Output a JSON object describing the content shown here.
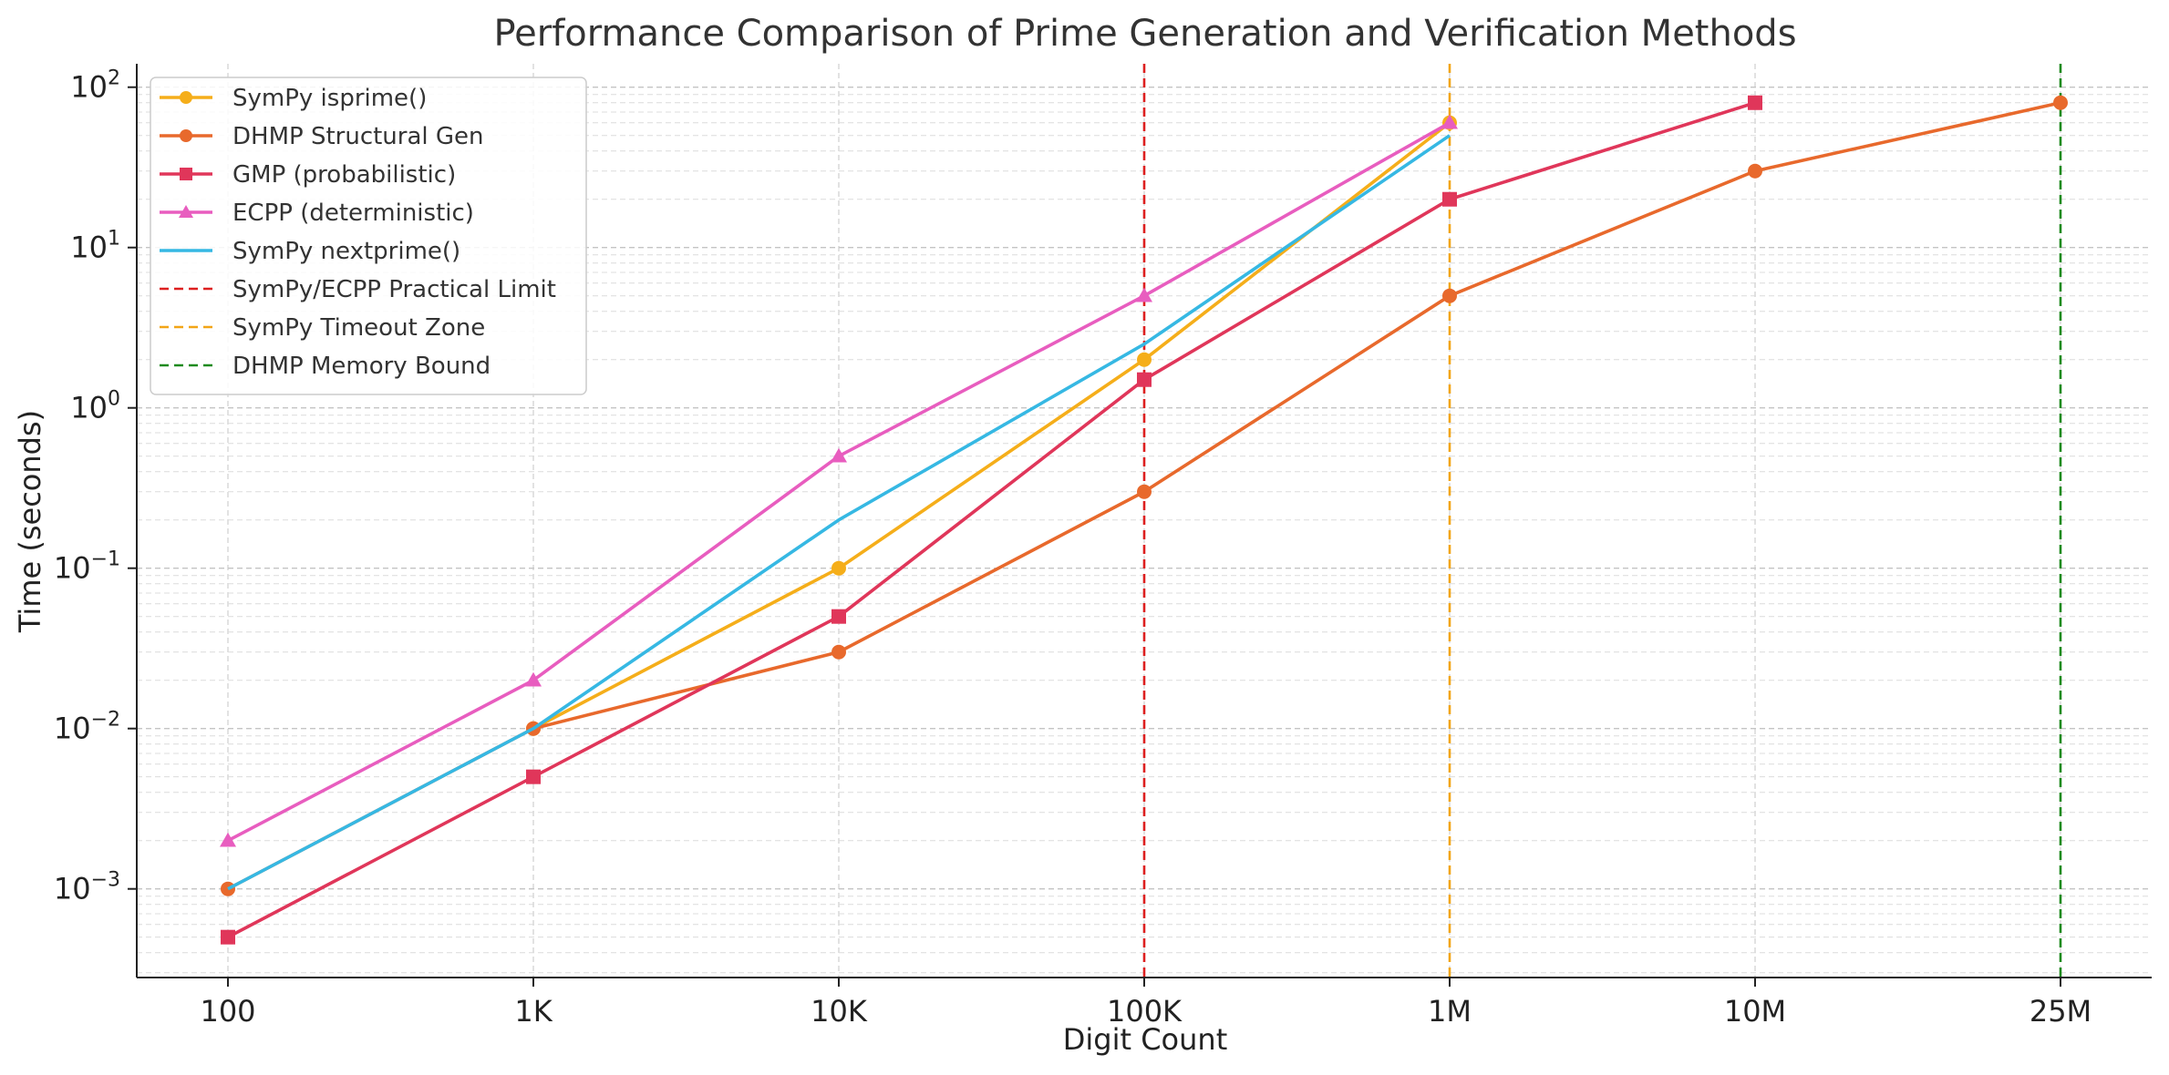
{
  "chart_data": {
    "type": "line",
    "title": "Performance Comparison of Prime Generation and Verification Methods",
    "xlabel": "Digit Count",
    "ylabel": "Time (seconds)",
    "categories": [
      "100",
      "1K",
      "10K",
      "100K",
      "1M",
      "10M",
      "25M"
    ],
    "yscale": "log",
    "ylim": [
      0.00028,
      140
    ],
    "yticks": [
      {
        "value": 0.001,
        "base": "10",
        "exp": "−3"
      },
      {
        "value": 0.01,
        "base": "10",
        "exp": "−2"
      },
      {
        "value": 0.1,
        "base": "10",
        "exp": "−1"
      },
      {
        "value": 1,
        "base": "10",
        "exp": "0"
      },
      {
        "value": 10,
        "base": "10",
        "exp": "1"
      },
      {
        "value": 100,
        "base": "10",
        "exp": "2"
      }
    ],
    "grid": true,
    "legend_position": "top-left",
    "series": [
      {
        "name": "SymPy isprime()",
        "color": "#F5AE1A",
        "marker": "circle",
        "values": [
          null,
          0.01,
          0.1,
          2,
          60,
          null,
          null
        ]
      },
      {
        "name": "DHMP Structural Gen",
        "color": "#E8692C",
        "marker": "circle",
        "values": [
          0.001,
          0.01,
          0.03,
          0.3,
          5,
          30,
          80
        ]
      },
      {
        "name": "GMP (probabilistic)",
        "color": "#E0365A",
        "marker": "square",
        "values": [
          0.0005,
          0.005,
          0.05,
          1.5,
          20,
          80,
          null
        ]
      },
      {
        "name": "ECPP (deterministic)",
        "color": "#E85DBF",
        "marker": "triangle",
        "values": [
          0.002,
          0.02,
          0.5,
          5,
          60,
          null,
          null
        ]
      },
      {
        "name": "SymPy nextprime()",
        "color": "#36B8E3",
        "marker": "none",
        "values": [
          0.001,
          0.01,
          0.2,
          2.5,
          50,
          null,
          null
        ]
      }
    ],
    "vlines": [
      {
        "name": "SymPy/ECPP Practical Limit",
        "color": "#DD1F1F",
        "at": "100K"
      },
      {
        "name": "SymPy Timeout Zone",
        "color": "#F2A516",
        "at": "1M"
      },
      {
        "name": "DHMP Memory Bound",
        "color": "#1E8A1E",
        "at": "25M"
      }
    ]
  }
}
